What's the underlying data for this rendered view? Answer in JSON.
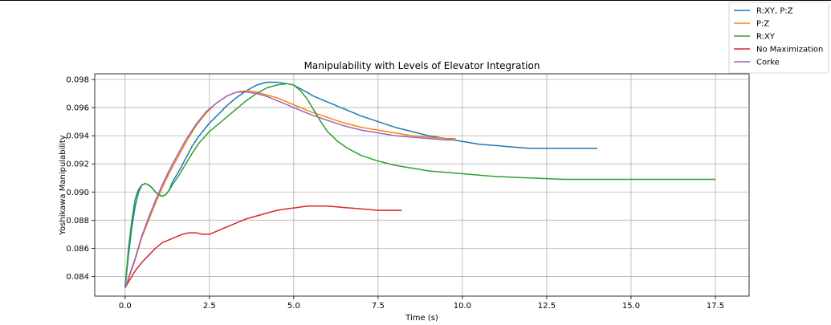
{
  "chart_data": {
    "type": "line",
    "title": "Manipulability with Levels of Elevator Integration",
    "xlabel": "Time (s)",
    "ylabel": "Yoshikawa Manipulability",
    "xlim": [
      -0.9,
      18.5
    ],
    "ylim": [
      0.0826,
      0.0984
    ],
    "xticks": [
      0.0,
      2.5,
      5.0,
      7.5,
      10.0,
      12.5,
      15.0,
      17.5
    ],
    "xtick_labels": [
      "0.0",
      "2.5",
      "5.0",
      "7.5",
      "10.0",
      "12.5",
      "15.0",
      "17.5"
    ],
    "yticks": [
      0.084,
      0.086,
      0.088,
      0.09,
      0.092,
      0.094,
      0.096,
      0.098
    ],
    "ytick_labels": [
      "0.084",
      "0.086",
      "0.088",
      "0.090",
      "0.092",
      "0.094",
      "0.096",
      "0.098"
    ],
    "grid": true,
    "legend_position": "top-right",
    "series": [
      {
        "name": "R:XY, P:Z",
        "color": "#1f77b4",
        "x": [
          0.0,
          0.1,
          0.2,
          0.3,
          0.4,
          0.5,
          0.6,
          0.7,
          0.8,
          0.9,
          1.0,
          1.1,
          1.2,
          1.3,
          1.4,
          1.6,
          1.8,
          2.0,
          2.2,
          2.5,
          2.8,
          3.0,
          3.3,
          3.6,
          3.9,
          4.2,
          4.5,
          4.8,
          5.0,
          5.3,
          5.6,
          6.0,
          6.5,
          7.0,
          7.5,
          8.0,
          8.5,
          9.0,
          9.5,
          10.0,
          10.5,
          11.0,
          11.5,
          12.0,
          12.5,
          13.0,
          13.5,
          14.0
        ],
        "y": [
          0.0832,
          0.0855,
          0.0875,
          0.089,
          0.09,
          0.0905,
          0.0906,
          0.0905,
          0.0903,
          0.09,
          0.0898,
          0.0897,
          0.0898,
          0.0901,
          0.0907,
          0.0915,
          0.0924,
          0.0933,
          0.094,
          0.0949,
          0.0956,
          0.0961,
          0.0967,
          0.0972,
          0.0976,
          0.0978,
          0.0978,
          0.0977,
          0.0976,
          0.0972,
          0.0968,
          0.0964,
          0.0959,
          0.0954,
          0.095,
          0.0946,
          0.0943,
          0.094,
          0.0938,
          0.0936,
          0.0934,
          0.0933,
          0.0932,
          0.0931,
          0.0931,
          0.0931,
          0.0931,
          0.0931
        ]
      },
      {
        "name": "P:Z",
        "color": "#ff7f0e",
        "x": [
          0.0,
          0.05,
          0.1,
          0.2,
          0.3,
          0.4,
          0.5,
          0.7,
          0.9,
          1.1,
          1.3,
          1.5,
          1.8,
          2.1,
          2.4,
          2.7,
          3.0,
          3.3,
          3.6,
          3.9,
          4.2,
          4.5,
          4.8,
          5.1,
          5.5,
          6.0,
          6.5,
          7.0,
          7.5,
          8.0,
          8.5,
          9.0,
          9.5,
          9.8
        ],
        "y": [
          0.0832,
          0.0834,
          0.0838,
          0.0845,
          0.0852,
          0.086,
          0.0868,
          0.088,
          0.0892,
          0.0903,
          0.0913,
          0.0922,
          0.0935,
          0.0947,
          0.0956,
          0.0963,
          0.0968,
          0.0971,
          0.0972,
          0.0971,
          0.0969,
          0.0967,
          0.0964,
          0.0961,
          0.0957,
          0.0953,
          0.0949,
          0.0946,
          0.0944,
          0.0942,
          0.094,
          0.0939,
          0.0938,
          0.0938
        ]
      },
      {
        "name": "R:XY",
        "color": "#2ca02c",
        "x": [
          0.0,
          0.1,
          0.2,
          0.3,
          0.4,
          0.5,
          0.6,
          0.7,
          0.8,
          0.9,
          1.0,
          1.1,
          1.2,
          1.3,
          1.4,
          1.6,
          1.8,
          2.0,
          2.2,
          2.5,
          2.8,
          3.0,
          3.3,
          3.6,
          3.9,
          4.2,
          4.5,
          4.8,
          5.0,
          5.2,
          5.4,
          5.6,
          5.8,
          6.0,
          6.3,
          6.6,
          7.0,
          7.5,
          8.0,
          8.5,
          9.0,
          9.5,
          10.0,
          11.0,
          12.0,
          13.0,
          14.0,
          15.0,
          16.0,
          17.0,
          17.5
        ],
        "y": [
          0.0832,
          0.086,
          0.088,
          0.0895,
          0.0902,
          0.0905,
          0.0906,
          0.0905,
          0.0903,
          0.09,
          0.0898,
          0.0897,
          0.0898,
          0.0901,
          0.0905,
          0.0912,
          0.092,
          0.0928,
          0.0935,
          0.0943,
          0.0949,
          0.0953,
          0.0959,
          0.0965,
          0.097,
          0.0974,
          0.0976,
          0.0977,
          0.0976,
          0.0972,
          0.0966,
          0.0958,
          0.095,
          0.0943,
          0.0936,
          0.0931,
          0.0926,
          0.0922,
          0.0919,
          0.0917,
          0.0915,
          0.0914,
          0.0913,
          0.0911,
          0.091,
          0.0909,
          0.0909,
          0.0909,
          0.0909,
          0.0909,
          0.0909
        ]
      },
      {
        "name": "No Maximization",
        "color": "#d62728",
        "x": [
          0.0,
          0.1,
          0.2,
          0.3,
          0.5,
          0.7,
          0.9,
          1.1,
          1.3,
          1.5,
          1.7,
          1.9,
          2.1,
          2.3,
          2.5,
          2.7,
          3.0,
          3.3,
          3.6,
          3.9,
          4.2,
          4.5,
          4.8,
          5.1,
          5.4,
          5.7,
          6.0,
          6.5,
          7.0,
          7.5,
          8.0,
          8.2
        ],
        "y": [
          0.0832,
          0.0836,
          0.084,
          0.0844,
          0.085,
          0.0855,
          0.086,
          0.0864,
          0.0866,
          0.0868,
          0.087,
          0.0871,
          0.0871,
          0.087,
          0.087,
          0.0872,
          0.0875,
          0.0878,
          0.0881,
          0.0883,
          0.0885,
          0.0887,
          0.0888,
          0.0889,
          0.089,
          0.089,
          0.089,
          0.0889,
          0.0888,
          0.0887,
          0.0887,
          0.0887
        ]
      },
      {
        "name": "Corke",
        "color": "#9467bd",
        "x": [
          0.0,
          0.05,
          0.1,
          0.2,
          0.3,
          0.4,
          0.5,
          0.7,
          0.9,
          1.1,
          1.3,
          1.5,
          1.8,
          2.1,
          2.4,
          2.7,
          3.0,
          3.3,
          3.6,
          3.9,
          4.2,
          4.5,
          4.8,
          5.1,
          5.5,
          6.0,
          6.5,
          7.0,
          7.5,
          8.0,
          8.5,
          9.0,
          9.5,
          9.8
        ],
        "y": [
          0.0832,
          0.0835,
          0.0839,
          0.0846,
          0.0853,
          0.0861,
          0.0869,
          0.0882,
          0.0894,
          0.0905,
          0.0915,
          0.0924,
          0.0937,
          0.0948,
          0.0957,
          0.0963,
          0.0968,
          0.0971,
          0.0971,
          0.097,
          0.0968,
          0.0965,
          0.0962,
          0.0959,
          0.0955,
          0.0951,
          0.0947,
          0.0944,
          0.0942,
          0.094,
          0.0939,
          0.0938,
          0.0937,
          0.0937
        ]
      }
    ]
  }
}
